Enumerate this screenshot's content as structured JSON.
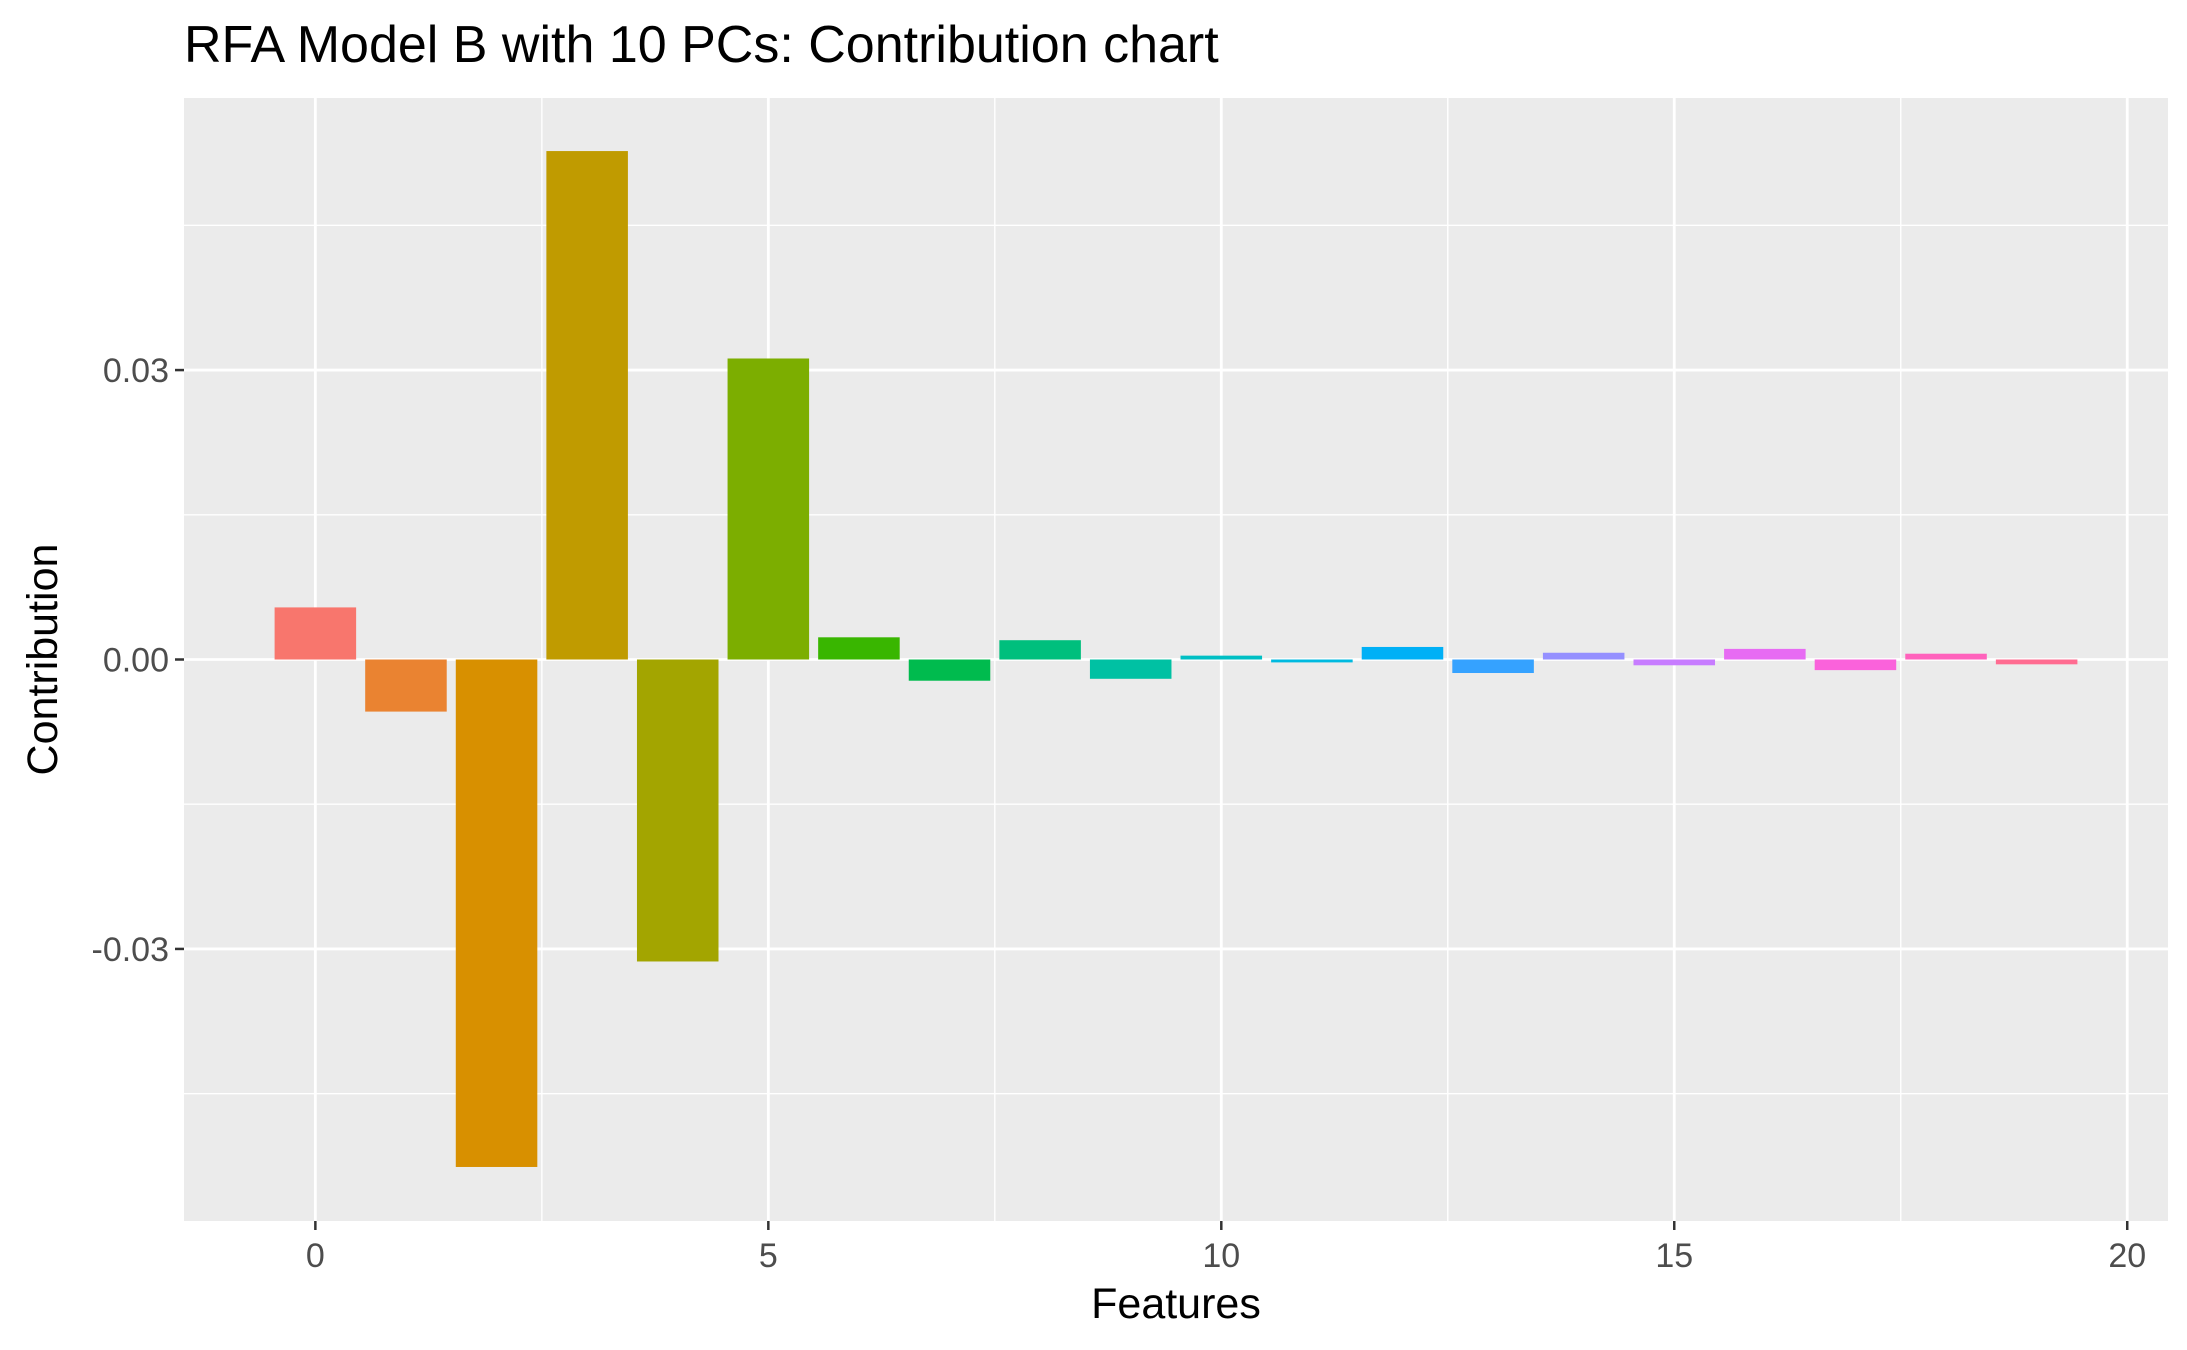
{
  "chart_data": {
    "type": "bar",
    "title": "RFA Model B with 10 PCs: Contribution chart",
    "xlabel": "Features",
    "ylabel": "Contribution",
    "x": [
      0,
      1,
      2,
      3,
      4,
      5,
      6,
      7,
      8,
      9,
      10,
      11,
      12,
      13,
      14,
      15,
      16,
      17,
      18,
      19
    ],
    "values": [
      0.0054,
      -0.0054,
      -0.0526,
      0.0527,
      -0.0313,
      0.0312,
      0.0023,
      -0.0022,
      0.002,
      -0.002,
      0.0004,
      -0.0003,
      0.0013,
      -0.0014,
      0.0007,
      -0.0006,
      0.0011,
      -0.0011,
      0.0006,
      -0.0005
    ],
    "colors": [
      "#F8766D",
      "#EA8331",
      "#D89000",
      "#C09B00",
      "#A3A500",
      "#7CAE00",
      "#39B600",
      "#00BB4E",
      "#00BF7D",
      "#00C1A3",
      "#00BFC4",
      "#00BAE0",
      "#00B0F6",
      "#35A2FF",
      "#9590FF",
      "#C77CFF",
      "#E76BF3",
      "#FA62DB",
      "#FF62BC",
      "#FF6C91"
    ],
    "xlim": [
      -1.45,
      20.45
    ],
    "ylim": [
      -0.0582,
      0.0582
    ],
    "x_ticks": [
      0,
      5,
      10,
      15,
      20
    ],
    "x_tick_labels": [
      "0",
      "5",
      "10",
      "15",
      "20"
    ],
    "y_ticks": [
      -0.03,
      0.0,
      0.03
    ],
    "y_tick_labels": [
      "-0.03",
      "0.00",
      "0.03"
    ],
    "x_minor_ticks": [
      2.5,
      7.5,
      12.5,
      17.5
    ],
    "y_minor_ticks": [
      -0.045,
      -0.015,
      0.015,
      0.045
    ],
    "bar_width": 0.9,
    "panel_background": "#EBEBEB",
    "grid_color": "#FFFFFF",
    "grid": true,
    "legend": "none"
  }
}
